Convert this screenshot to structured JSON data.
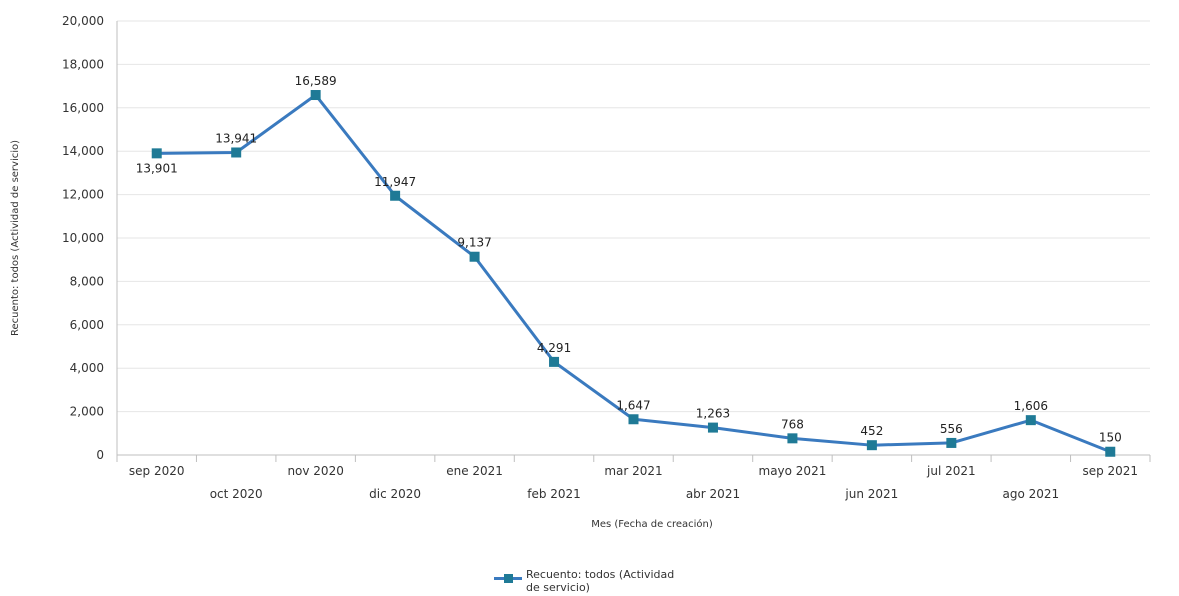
{
  "chart_data": {
    "type": "line",
    "xlabel": "Mes (Fecha de creación)",
    "ylabel": "Recuento: todos (Actividad de servicio)",
    "ylim": [
      0,
      20000
    ],
    "yticks": [
      "20,000",
      "18,000",
      "16,000",
      "14,000",
      "12,000",
      "10,000",
      "8,000",
      "6,000",
      "4,000",
      "2,000",
      "0"
    ],
    "categories": [
      "sep 2020",
      "oct 2020",
      "nov 2020",
      "dic 2020",
      "ene 2021",
      "feb 2021",
      "mar 2021",
      "abr 2021",
      "mayo 2021",
      "jun 2021",
      "jul 2021",
      "ago 2021",
      "sep 2021"
    ],
    "series": [
      {
        "name": "Recuento: todos (Actividad de servicio)",
        "values": [
          13901,
          13941,
          16589,
          11947,
          9137,
          4291,
          1647,
          1263,
          768,
          452,
          556,
          1606,
          150
        ],
        "labels": [
          "13,901",
          "13,941",
          "16,589",
          "11,947",
          "9,137",
          "4,291",
          "1,647",
          "1,263",
          "768",
          "452",
          "556",
          "1,606",
          "150"
        ]
      }
    ],
    "grid": true,
    "legend_position": "bottom",
    "colors": {
      "line": "#3a7abf",
      "marker": "#1f7a96",
      "grid": "#e6e6e6",
      "axis": "#bfbfbf"
    }
  },
  "legend": {
    "line1": "Recuento: todos (Actividad",
    "line2": "de servicio)"
  }
}
